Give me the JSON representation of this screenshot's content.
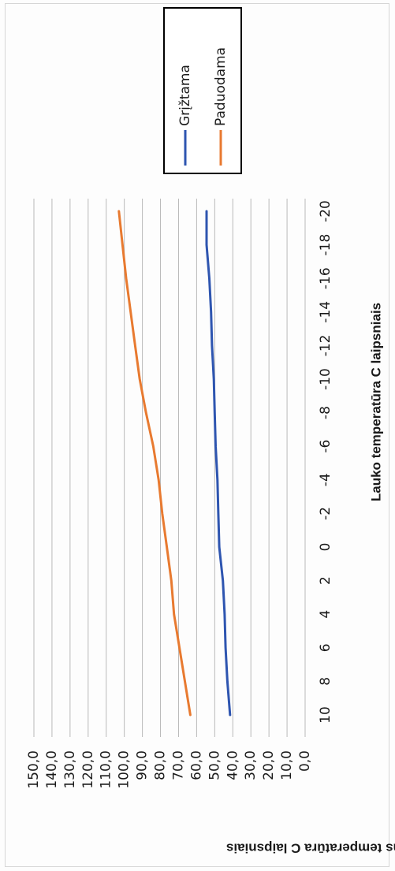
{
  "chart_data": {
    "type": "line",
    "orientation": "rotated-90-clockwise",
    "x": [
      10,
      8,
      6,
      4,
      2,
      0,
      -2,
      -4,
      -6,
      -8,
      -10,
      -12,
      -14,
      -16,
      -18,
      -20
    ],
    "x_tick_labels": [
      "10",
      "8",
      "6",
      "4",
      "2",
      "0",
      "-2",
      "-4",
      "-6",
      "-8",
      "-10",
      "-12",
      "-14",
      "-16",
      "-18",
      "-20"
    ],
    "y_tick_labels": [
      "0,0",
      "10,0",
      "20,0",
      "30,0",
      "40,0",
      "50,0",
      "60,0",
      "70,0",
      "80,0",
      "90,0",
      "100,0",
      "110,0",
      "120,0",
      "130,0",
      "140,0",
      "150,0"
    ],
    "ylim": [
      0,
      150
    ],
    "xlabel": "Lauko temperatūra C laipsniais",
    "ylabel": "Vandens temperatūra C laipsniais",
    "grid": true,
    "legend_position": "top-right",
    "series": [
      {
        "name": "Grįžtama",
        "color": "#2e55b0",
        "values": [
          41.5,
          43.0,
          44.0,
          44.5,
          45.5,
          47.5,
          48.0,
          48.5,
          49.5,
          50.0,
          50.5,
          51.5,
          52.0,
          53.0,
          54.5,
          54.5
        ]
      },
      {
        "name": "Paduodama",
        "color": "#e87a30",
        "values": [
          63.5,
          66.5,
          69.5,
          72.5,
          74.0,
          76.5,
          79.0,
          81.0,
          84.0,
          88.0,
          91.5,
          94.0,
          96.5,
          99.0,
          101.0,
          103.0
        ]
      }
    ]
  }
}
